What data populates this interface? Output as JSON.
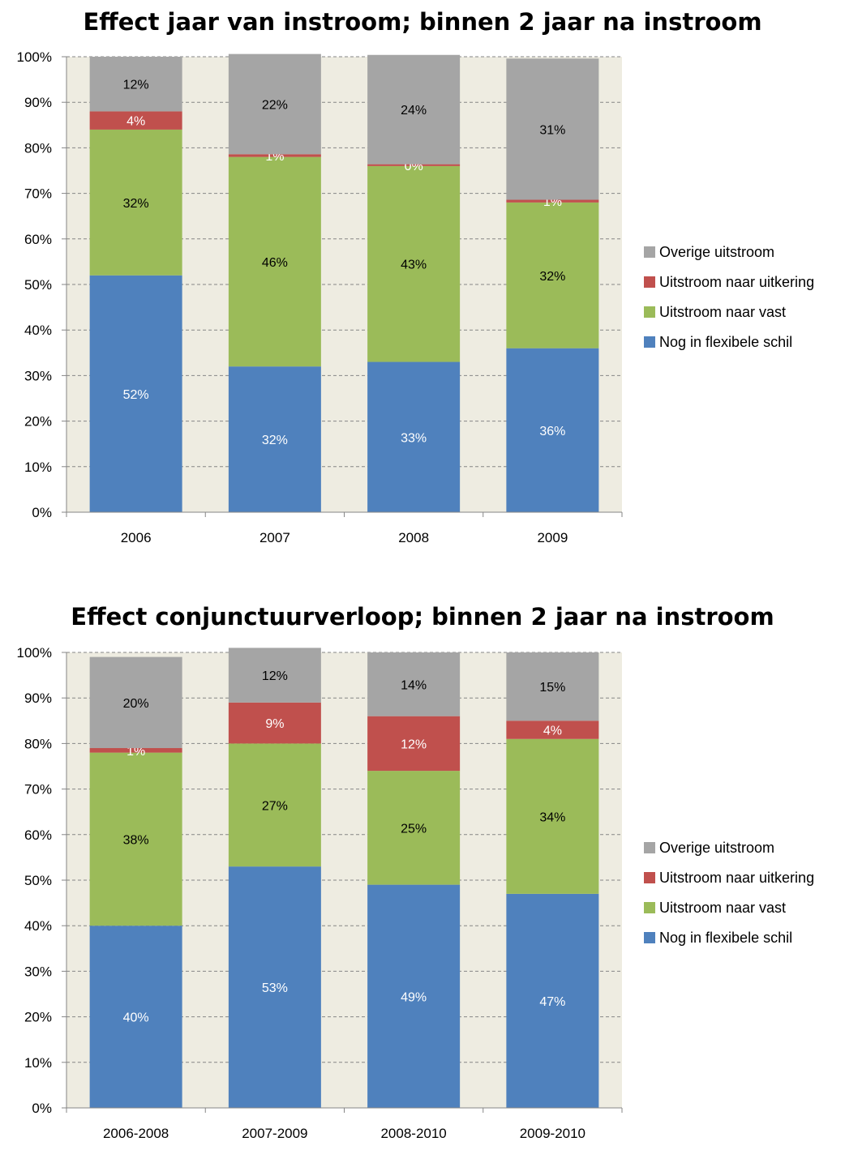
{
  "chart_data": [
    {
      "type": "bar",
      "stacked": true,
      "title": "Effect jaar van instroom; binnen 2 jaar na instroom",
      "categories": [
        "2006",
        "2007",
        "2008",
        "2009"
      ],
      "ylim": [
        0,
        100
      ],
      "yticks": [
        "0%",
        "10%",
        "20%",
        "30%",
        "40%",
        "50%",
        "60%",
        "70%",
        "80%",
        "90%",
        "100%"
      ],
      "grid": true,
      "legend": "right",
      "series": [
        {
          "name": "Nog in flexibele schil",
          "color": "#4F81BD",
          "label_color": "#ffffff",
          "values": [
            52,
            32,
            33,
            36
          ],
          "labels": [
            "52%",
            "32%",
            "33%",
            "36%"
          ]
        },
        {
          "name": "Uitstroom naar vast",
          "color": "#9BBB59",
          "label_color": "#000000",
          "values": [
            32,
            46,
            43,
            32
          ],
          "labels": [
            "32%",
            "46%",
            "43%",
            "32%"
          ]
        },
        {
          "name": "Uitstroom naar uitkering",
          "color": "#C0504D",
          "label_color": "#ffffff",
          "values": [
            4,
            0.6,
            0.4,
            0.6
          ],
          "labels": [
            "4%",
            "1%",
            "0%",
            "1%"
          ]
        },
        {
          "name": "Overige uitstroom",
          "color": "#A5A5A5",
          "label_color": "#000000",
          "values": [
            12,
            22,
            24,
            31
          ],
          "labels": [
            "12%",
            "22%",
            "24%",
            "31%"
          ]
        }
      ]
    },
    {
      "type": "bar",
      "stacked": true,
      "title": "Effect conjunctuurverloop; binnen 2 jaar na instroom",
      "categories": [
        "2006-2008",
        "2007-2009",
        "2008-2010",
        "2009-2010"
      ],
      "ylim": [
        0,
        100
      ],
      "yticks": [
        "0%",
        "10%",
        "20%",
        "30%",
        "40%",
        "50%",
        "60%",
        "70%",
        "80%",
        "90%",
        "100%"
      ],
      "grid": true,
      "legend": "right",
      "series": [
        {
          "name": "Nog in flexibele schil",
          "color": "#4F81BD",
          "label_color": "#ffffff",
          "values": [
            40,
            53,
            49,
            47
          ],
          "labels": [
            "40%",
            "53%",
            "49%",
            "47%"
          ]
        },
        {
          "name": "Uitstroom naar vast",
          "color": "#9BBB59",
          "label_color": "#000000",
          "values": [
            38,
            27,
            25,
            34
          ],
          "labels": [
            "38%",
            "27%",
            "25%",
            "34%"
          ]
        },
        {
          "name": "Uitstroom naar uitkering",
          "color": "#C0504D",
          "label_color": "#ffffff",
          "values": [
            1,
            9,
            12,
            4
          ],
          "labels": [
            "1%",
            "9%",
            "12%",
            "4%"
          ]
        },
        {
          "name": "Overige uitstroom",
          "color": "#A5A5A5",
          "label_color": "#000000",
          "values": [
            20,
            12,
            14,
            15
          ],
          "labels": [
            "20%",
            "12%",
            "14%",
            "15%"
          ]
        }
      ]
    }
  ]
}
